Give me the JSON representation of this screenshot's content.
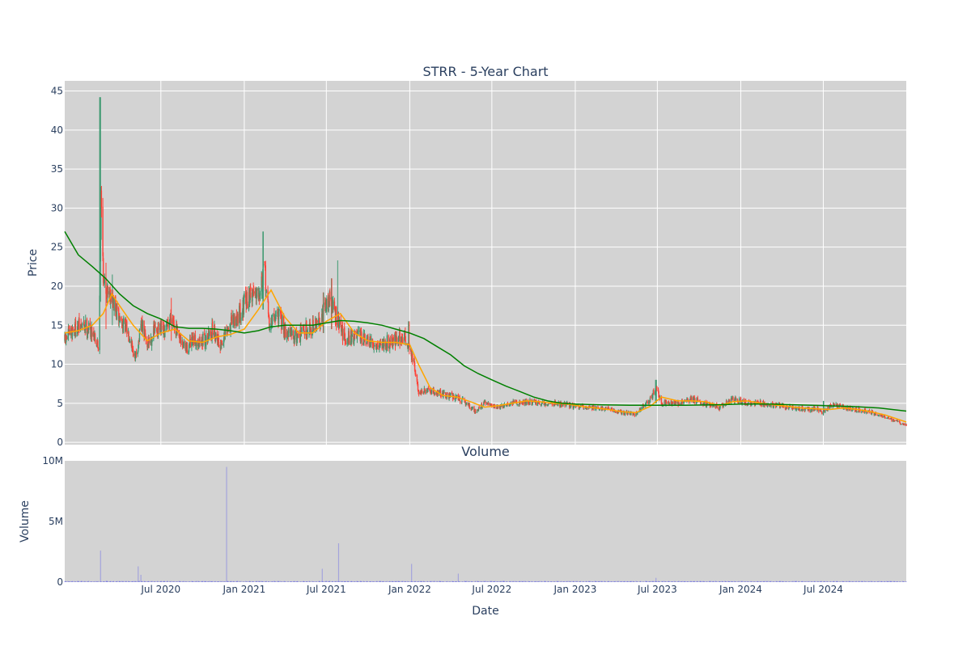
{
  "chart_data": [
    {
      "type": "candlestick",
      "title": "STRR - 5-Year Chart",
      "ylabel": "Price",
      "ylim": [
        -0.3,
        46.3
      ],
      "yticks": [
        0,
        5,
        10,
        15,
        20,
        25,
        30,
        35,
        40,
        45
      ],
      "x_start": "2019-12-02",
      "x_end": "2024-12-31",
      "xticks": [
        {
          "date": "2020-07-01",
          "label": "Jul 2020"
        },
        {
          "date": "2021-01-01",
          "label": "Jan 2021"
        },
        {
          "date": "2021-07-01",
          "label": "Jul 2021"
        },
        {
          "date": "2022-01-01",
          "label": "Jan 2022"
        },
        {
          "date": "2022-07-01",
          "label": "Jul 2022"
        },
        {
          "date": "2023-01-01",
          "label": "Jan 2023"
        },
        {
          "date": "2023-07-01",
          "label": "Jul 2023"
        },
        {
          "date": "2024-01-01",
          "label": "Jan 2024"
        },
        {
          "date": "2024-07-01",
          "label": "Jul 2024"
        }
      ],
      "up_color": "#3d9970",
      "down_color": "#ff4136",
      "close_path": [
        [
          "2019-12-02",
          13.0
        ],
        [
          "2019-12-20",
          14.5
        ],
        [
          "2020-01-15",
          15.0
        ],
        [
          "2020-02-05",
          14.0
        ],
        [
          "2020-02-15",
          11.8
        ],
        [
          "2020-02-20",
          31.5
        ],
        [
          "2020-02-26",
          20.0
        ],
        [
          "2020-03-10",
          19.5
        ],
        [
          "2020-03-25",
          16.5
        ],
        [
          "2020-04-10",
          15.0
        ],
        [
          "2020-04-25",
          13.5
        ],
        [
          "2020-05-05",
          10.5
        ],
        [
          "2020-05-20",
          15.0
        ],
        [
          "2020-06-01",
          12.5
        ],
        [
          "2020-06-20",
          14.5
        ],
        [
          "2020-07-10",
          14.0
        ],
        [
          "2020-07-25",
          16.5
        ],
        [
          "2020-08-10",
          13.0
        ],
        [
          "2020-08-25",
          12.0
        ],
        [
          "2020-09-15",
          13.0
        ],
        [
          "2020-10-05",
          13.0
        ],
        [
          "2020-10-25",
          14.5
        ],
        [
          "2020-11-10",
          12.5
        ],
        [
          "2020-12-01",
          15.0
        ],
        [
          "2020-12-20",
          16.5
        ],
        [
          "2021-01-15",
          19.0
        ],
        [
          "2021-02-05",
          20.0
        ],
        [
          "2021-02-15",
          22.0
        ],
        [
          "2021-02-25",
          15.0
        ],
        [
          "2021-03-15",
          16.5
        ],
        [
          "2021-04-05",
          14.0
        ],
        [
          "2021-04-25",
          13.5
        ],
        [
          "2021-05-15",
          14.5
        ],
        [
          "2021-06-10",
          15.0
        ],
        [
          "2021-06-25",
          17.0
        ],
        [
          "2021-07-10",
          18.5
        ],
        [
          "2021-07-25",
          15.5
        ],
        [
          "2021-08-10",
          13.5
        ],
        [
          "2021-09-10",
          13.5
        ],
        [
          "2021-10-10",
          12.5
        ],
        [
          "2021-11-10",
          12.8
        ],
        [
          "2021-12-20",
          13.5
        ],
        [
          "2021-12-30",
          12.5
        ],
        [
          "2022-01-10",
          10.0
        ],
        [
          "2022-01-20",
          6.5
        ],
        [
          "2022-02-15",
          6.5
        ],
        [
          "2022-03-15",
          6.2
        ],
        [
          "2022-04-15",
          5.8
        ],
        [
          "2022-05-10",
          4.8
        ],
        [
          "2022-05-25",
          4.0
        ],
        [
          "2022-06-15",
          5.0
        ],
        [
          "2022-07-15",
          4.5
        ],
        [
          "2022-08-15",
          5.0
        ],
        [
          "2022-09-15",
          5.2
        ],
        [
          "2022-10-15",
          5.0
        ],
        [
          "2022-11-15",
          5.0
        ],
        [
          "2022-12-15",
          4.8
        ],
        [
          "2023-01-15",
          4.5
        ],
        [
          "2023-02-15",
          4.5
        ],
        [
          "2023-03-15",
          4.2
        ],
        [
          "2023-04-15",
          3.8
        ],
        [
          "2023-05-15",
          3.6
        ],
        [
          "2023-05-25",
          4.3
        ],
        [
          "2023-06-15",
          5.5
        ],
        [
          "2023-06-28",
          7.0
        ],
        [
          "2023-07-10",
          5.0
        ],
        [
          "2023-08-15",
          5.0
        ],
        [
          "2023-09-15",
          5.5
        ],
        [
          "2023-10-15",
          5.0
        ],
        [
          "2023-11-15",
          4.5
        ],
        [
          "2023-12-15",
          5.5
        ],
        [
          "2024-01-15",
          5.0
        ],
        [
          "2024-02-15",
          5.0
        ],
        [
          "2024-03-15",
          4.8
        ],
        [
          "2024-04-15",
          4.5
        ],
        [
          "2024-05-15",
          4.3
        ],
        [
          "2024-06-15",
          4.3
        ],
        [
          "2024-07-01",
          3.8
        ],
        [
          "2024-07-15",
          4.8
        ],
        [
          "2024-08-15",
          4.5
        ],
        [
          "2024-09-15",
          4.2
        ],
        [
          "2024-10-15",
          3.8
        ],
        [
          "2024-11-15",
          3.2
        ],
        [
          "2024-12-05",
          2.8
        ],
        [
          "2024-12-31",
          2.2
        ]
      ],
      "spikes": [
        {
          "date": "2020-02-18",
          "high": 44.2,
          "low": 18.0
        },
        {
          "date": "2020-03-01",
          "high": 23.0,
          "low": 14.5
        },
        {
          "date": "2020-03-15",
          "high": 21.5,
          "low": 15.0
        },
        {
          "date": "2020-07-25",
          "high": 18.5,
          "low": 13.0
        },
        {
          "date": "2021-02-12",
          "high": 27.0,
          "low": 17.0
        },
        {
          "date": "2021-06-25",
          "high": 19.2,
          "low": 14.0
        },
        {
          "date": "2021-07-12",
          "high": 21.0,
          "low": 14.5
        },
        {
          "date": "2021-07-25",
          "high": 23.3,
          "low": 15.0
        },
        {
          "date": "2021-12-30",
          "high": 15.5,
          "low": 12.0
        },
        {
          "date": "2023-06-28",
          "high": 8.0,
          "low": 5.0
        },
        {
          "date": "2024-07-01",
          "high": 5.3,
          "low": 3.8
        }
      ],
      "series": [
        {
          "type": "line",
          "color": "#ffa500",
          "points": [
            [
              "2019-12-02",
              14.0
            ],
            [
              "2020-01-01",
              14.3
            ],
            [
              "2020-02-01",
              15.0
            ],
            [
              "2020-02-25",
              16.5
            ],
            [
              "2020-03-15",
              19.0
            ],
            [
              "2020-04-01",
              17.5
            ],
            [
              "2020-05-01",
              15.0
            ],
            [
              "2020-06-01",
              13.0
            ],
            [
              "2020-07-01",
              14.0
            ],
            [
              "2020-08-01",
              14.5
            ],
            [
              "2020-09-01",
              13.0
            ],
            [
              "2020-10-01",
              12.8
            ],
            [
              "2020-11-01",
              13.5
            ],
            [
              "2020-12-01",
              13.8
            ],
            [
              "2021-01-01",
              14.5
            ],
            [
              "2021-02-01",
              17.0
            ],
            [
              "2021-03-01",
              19.5
            ],
            [
              "2021-04-01",
              16.0
            ],
            [
              "2021-05-01",
              14.0
            ],
            [
              "2021-06-01",
              14.0
            ],
            [
              "2021-07-01",
              15.5
            ],
            [
              "2021-08-01",
              16.5
            ],
            [
              "2021-09-01",
              14.0
            ],
            [
              "2021-10-01",
              13.0
            ],
            [
              "2021-11-01",
              12.8
            ],
            [
              "2021-12-01",
              12.8
            ],
            [
              "2022-01-01",
              12.5
            ],
            [
              "2022-01-20",
              10.0
            ],
            [
              "2022-02-15",
              7.0
            ],
            [
              "2022-03-15",
              6.0
            ],
            [
              "2022-04-15",
              5.8
            ],
            [
              "2022-05-15",
              5.2
            ],
            [
              "2022-06-15",
              4.5
            ],
            [
              "2022-07-15",
              4.7
            ],
            [
              "2022-08-15",
              5.0
            ],
            [
              "2022-09-15",
              5.3
            ],
            [
              "2022-10-15",
              5.2
            ],
            [
              "2022-11-15",
              5.0
            ],
            [
              "2022-12-15",
              4.9
            ],
            [
              "2023-01-15",
              4.6
            ],
            [
              "2023-02-15",
              4.4
            ],
            [
              "2023-03-15",
              4.2
            ],
            [
              "2023-04-15",
              3.9
            ],
            [
              "2023-05-15",
              3.8
            ],
            [
              "2023-06-15",
              4.6
            ],
            [
              "2023-07-10",
              5.8
            ],
            [
              "2023-08-15",
              5.3
            ],
            [
              "2023-09-15",
              5.3
            ],
            [
              "2023-10-15",
              5.2
            ],
            [
              "2023-11-15",
              4.7
            ],
            [
              "2023-12-15",
              5.2
            ],
            [
              "2024-01-15",
              5.3
            ],
            [
              "2024-02-15",
              5.0
            ],
            [
              "2024-03-15",
              4.8
            ],
            [
              "2024-04-15",
              4.6
            ],
            [
              "2024-05-15",
              4.4
            ],
            [
              "2024-06-15",
              4.3
            ],
            [
              "2024-07-15",
              4.2
            ],
            [
              "2024-08-15",
              4.4
            ],
            [
              "2024-09-15",
              4.2
            ],
            [
              "2024-10-15",
              3.9
            ],
            [
              "2024-11-15",
              3.5
            ],
            [
              "2024-12-31",
              2.6
            ]
          ]
        },
        {
          "type": "line",
          "color": "#008000",
          "points": [
            [
              "2019-12-02",
              27.0
            ],
            [
              "2020-01-01",
              24.0
            ],
            [
              "2020-02-01",
              22.5
            ],
            [
              "2020-03-01",
              21.0
            ],
            [
              "2020-04-01",
              19.0
            ],
            [
              "2020-05-01",
              17.5
            ],
            [
              "2020-06-01",
              16.5
            ],
            [
              "2020-07-01",
              15.8
            ],
            [
              "2020-08-01",
              14.8
            ],
            [
              "2020-09-01",
              14.6
            ],
            [
              "2020-10-01",
              14.6
            ],
            [
              "2020-11-01",
              14.5
            ],
            [
              "2020-12-01",
              14.3
            ],
            [
              "2021-01-01",
              14.0
            ],
            [
              "2021-02-01",
              14.3
            ],
            [
              "2021-03-01",
              14.8
            ],
            [
              "2021-04-01",
              15.0
            ],
            [
              "2021-05-01",
              15.0
            ],
            [
              "2021-06-01",
              15.0
            ],
            [
              "2021-07-01",
              15.3
            ],
            [
              "2021-08-01",
              15.6
            ],
            [
              "2021-09-01",
              15.5
            ],
            [
              "2021-10-01",
              15.3
            ],
            [
              "2021-11-01",
              15.0
            ],
            [
              "2021-12-01",
              14.5
            ],
            [
              "2022-01-01",
              14.0
            ],
            [
              "2022-02-01",
              13.3
            ],
            [
              "2022-03-01",
              12.3
            ],
            [
              "2022-04-01",
              11.2
            ],
            [
              "2022-05-01",
              9.8
            ],
            [
              "2022-06-01",
              8.8
            ],
            [
              "2022-07-01",
              8.0
            ],
            [
              "2022-08-01",
              7.2
            ],
            [
              "2022-09-01",
              6.5
            ],
            [
              "2022-10-01",
              5.8
            ],
            [
              "2022-11-01",
              5.3
            ],
            [
              "2022-12-01",
              5.0
            ],
            [
              "2023-01-01",
              4.9
            ],
            [
              "2023-03-01",
              4.8
            ],
            [
              "2023-05-01",
              4.75
            ],
            [
              "2023-07-01",
              4.75
            ],
            [
              "2023-09-01",
              4.75
            ],
            [
              "2023-11-01",
              4.8
            ],
            [
              "2024-01-01",
              4.9
            ],
            [
              "2024-03-01",
              4.9
            ],
            [
              "2024-05-01",
              4.8
            ],
            [
              "2024-07-01",
              4.7
            ],
            [
              "2024-09-01",
              4.6
            ],
            [
              "2024-11-01",
              4.4
            ],
            [
              "2024-12-31",
              4.0
            ]
          ]
        }
      ]
    },
    {
      "type": "bar",
      "title": "Volume",
      "xlabel": "Date",
      "ylabel": "Volume",
      "ylim": [
        0,
        10000000
      ],
      "yticks": [
        {
          "value": 0,
          "label": "0"
        },
        {
          "value": 5000000,
          "label": "5M"
        },
        {
          "value": 10000000,
          "label": "10M"
        }
      ],
      "bar_color": "#0000ff",
      "base_volume": 60000,
      "peaks": [
        {
          "date": "2020-02-19",
          "value": 2600000
        },
        {
          "date": "2020-05-12",
          "value": 1300000
        },
        {
          "date": "2020-05-18",
          "value": 600000
        },
        {
          "date": "2020-11-23",
          "value": 9500000
        },
        {
          "date": "2021-06-22",
          "value": 1100000
        },
        {
          "date": "2021-07-28",
          "value": 3200000
        },
        {
          "date": "2022-01-05",
          "value": 1500000
        },
        {
          "date": "2022-04-18",
          "value": 700000
        },
        {
          "date": "2023-06-28",
          "value": 350000
        }
      ]
    }
  ]
}
